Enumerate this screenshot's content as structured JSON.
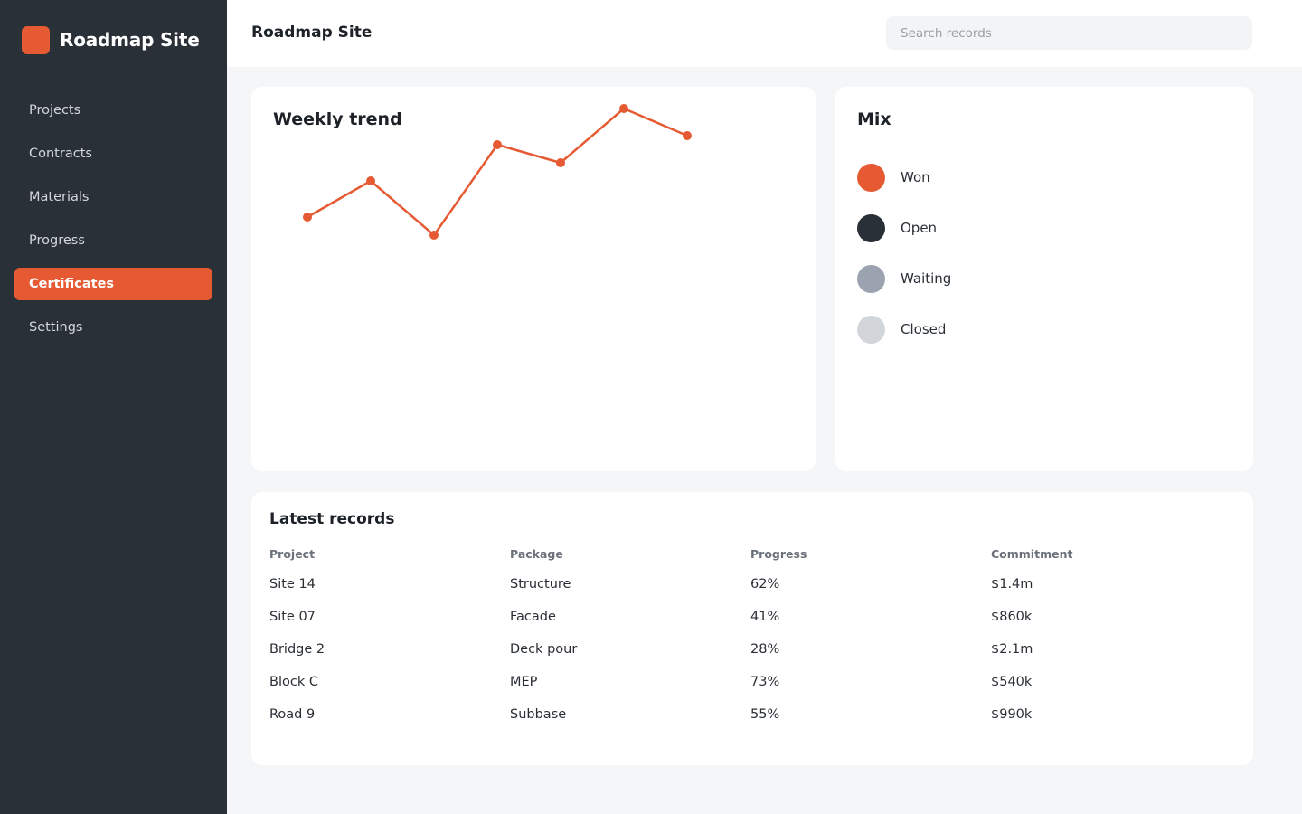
{
  "app": {
    "brand": "Roadmap Site",
    "accent": "#e55a32"
  },
  "sidebar": {
    "items": [
      {
        "label": "Projects",
        "active": false
      },
      {
        "label": "Contracts",
        "active": false
      },
      {
        "label": "Materials",
        "active": false
      },
      {
        "label": "Progress",
        "active": false
      },
      {
        "label": "Certificates",
        "active": true
      },
      {
        "label": "Settings",
        "active": false
      }
    ]
  },
  "header": {
    "title": "Roadmap Site",
    "search_placeholder": "Search records"
  },
  "trend": {
    "title": "Weekly trend"
  },
  "mix": {
    "title": "Mix",
    "items": [
      {
        "label": "Won",
        "color": "#e55a32"
      },
      {
        "label": "Open",
        "color": "#2a3038"
      },
      {
        "label": "Waiting",
        "color": "#9ba3b0"
      },
      {
        "label": "Closed",
        "color": "#d2d5da"
      }
    ]
  },
  "records": {
    "title": "Latest records",
    "columns": [
      "Project",
      "Package",
      "Progress",
      "Commitment"
    ],
    "rows": [
      [
        "Site 14",
        "Structure",
        "62%",
        "$1.4m"
      ],
      [
        "Site 07",
        "Facade",
        "41%",
        "$860k"
      ],
      [
        "Bridge 2",
        "Deck pour",
        "28%",
        "$2.1m"
      ],
      [
        "Block C",
        "MEP",
        "73%",
        "$540k"
      ],
      [
        "Road 9",
        "Subbase",
        "55%",
        "$990k"
      ]
    ]
  },
  "chart_data": {
    "type": "line",
    "title": "Weekly trend",
    "x": [
      1,
      2,
      3,
      4,
      5,
      6,
      7
    ],
    "series": [
      {
        "values": [
          40,
          60,
          30,
          80,
          70,
          100,
          85
        ],
        "color": "#e55a32"
      }
    ],
    "ylim": [
      30,
      100
    ],
    "grid": false,
    "legend": "none"
  }
}
